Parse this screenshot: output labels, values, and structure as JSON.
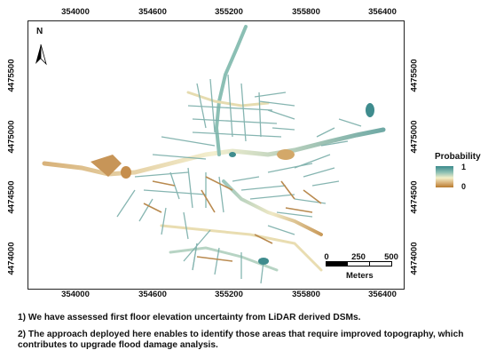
{
  "map": {
    "top_ticks": [
      "354000",
      "354600",
      "355200",
      "355800",
      "356400"
    ],
    "bottom_ticks": [
      "354000",
      "354600",
      "355200",
      "355800",
      "356400"
    ],
    "left_ticks": [
      "4475500",
      "4475000",
      "4474500",
      "4474000"
    ],
    "right_ticks": [
      "4475500",
      "4475000",
      "4474500",
      "4474000"
    ],
    "north_label": "N"
  },
  "legend": {
    "title": "Probability",
    "max_label": "1",
    "min_label": "0",
    "colors": [
      "#3b8a8c",
      "#8fc1b4",
      "#f3efc9",
      "#d9b27a",
      "#b87a2e"
    ]
  },
  "scalebar": {
    "labels": [
      "0",
      "250",
      "500"
    ],
    "unit": "Meters"
  },
  "notes": {
    "line1": "1) We have assessed first floor elevation uncertainty from LiDAR derived DSMs.",
    "line2": "2) The approach deployed here enables to identify those areas that require improved topography, which contributes  to upgrade flood damage analysis."
  }
}
